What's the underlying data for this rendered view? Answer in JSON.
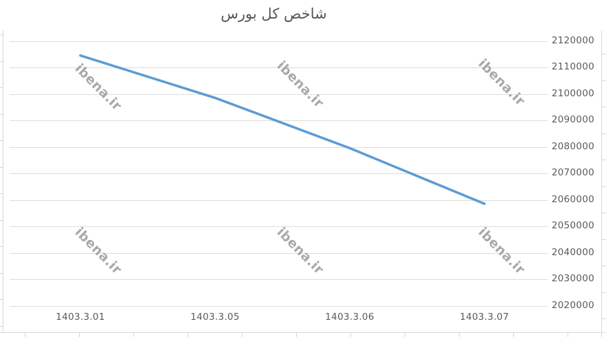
{
  "title": "شاخص کل بورس",
  "watermark_text": "ibena.ir",
  "colors": {
    "line": "#5B9BD5",
    "grid": "#dcdcdc",
    "axis_text": "#595959",
    "title_text": "#565656",
    "watermark": "#9b9b9b"
  },
  "chart_data": {
    "type": "line",
    "title": "شاخص کل بورس",
    "categories": [
      "1403.3.01",
      "1403.3.05",
      "1403.3.06",
      "1403.3.07"
    ],
    "series": [
      {
        "name": "شاخص کل بورس",
        "values": [
          2114500,
          2098500,
          2079500,
          2058500
        ]
      }
    ],
    "xlabel": "",
    "ylabel": "",
    "ylim": [
      2020000,
      2120000
    ],
    "y_ticks": [
      2020000,
      2030000,
      2040000,
      2050000,
      2060000,
      2070000,
      2080000,
      2090000,
      2100000,
      2110000,
      2120000
    ],
    "y_axis_side": "right",
    "grid": true,
    "legend": false
  }
}
